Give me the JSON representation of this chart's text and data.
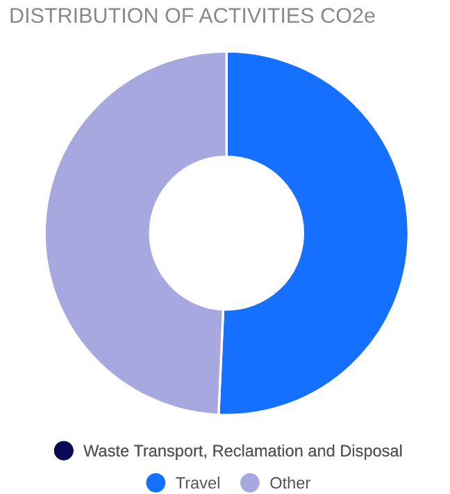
{
  "chart_data": {
    "type": "donut",
    "title": "DISTRIBUTION OF ACTIVITIES CO2e",
    "categories": [
      "Waste Transport, Reclamation and Disposal",
      "Travel",
      "Other"
    ],
    "values": [
      0,
      50.7,
      49.3
    ],
    "colors": [
      "#0b0b55",
      "#1670ff",
      "#a8a8e0"
    ],
    "legend": "bottom"
  }
}
